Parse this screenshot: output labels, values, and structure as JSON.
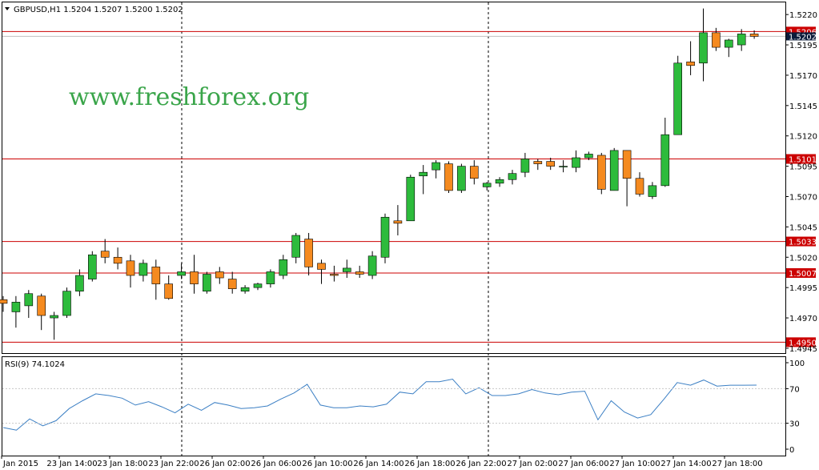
{
  "header": {
    "symbol_line": "GBPUSD,H1  1.5204  1.5207  1.5200  1.5202",
    "rsi_label": "RSI(9) 74.1024"
  },
  "watermark": "www.freshforex.org",
  "colors": {
    "bull": "#2dbb3c",
    "bear": "#f58a1f",
    "candle_outline": "#000000",
    "level_line": "#cc0000",
    "level_tag_bg": "#cc0000",
    "price_tag_bg": "#0b1b3a",
    "rsi_line": "#3b7fc4",
    "watermark": "#3aa54a",
    "grid": "#000000"
  },
  "chart_data": [
    {
      "type": "candlestick",
      "title": "GBPUSD,H1",
      "ylim": [
        1.4941,
        1.523
      ],
      "y_ticks": [
        "1.5220",
        "1.5195",
        "1.5170",
        "1.5145",
        "1.5120",
        "1.5095",
        "1.5070",
        "1.5045",
        "1.5020",
        "1.4995",
        "1.4970",
        "1.4945"
      ],
      "x_ticks": [
        "23 Jan 2015",
        "23 Jan 14:00",
        "23 Jan 18:00",
        "23 Jan 22:00",
        "26 Jan 02:00",
        "26 Jan 06:00",
        "26 Jan 10:00",
        "26 Jan 14:00",
        "26 Jan 18:00",
        "26 Jan 22:00",
        "27 Jan 02:00",
        "27 Jan 06:00",
        "27 Jan 10:00",
        "27 Jan 14:00",
        "27 Jan 18:00"
      ],
      "separator_after_ticks": [
        "23 Jan 22:00",
        "26 Jan 22:00"
      ],
      "levels": [
        {
          "value": 1.5206,
          "label": "1.5206"
        },
        {
          "value": 1.5101,
          "label": "1.5101"
        },
        {
          "value": 1.5033,
          "label": "1.5033"
        },
        {
          "value": 1.5007,
          "label": "1.5007"
        },
        {
          "value": 1.495,
          "label": "1.4950"
        }
      ],
      "current_price": {
        "value": 1.5202,
        "label": "1.5202"
      },
      "ohlc": [
        [
          1.4985,
          1.4988,
          1.4975,
          1.4982
        ],
        [
          1.4975,
          1.4988,
          1.4962,
          1.4983
        ],
        [
          1.498,
          1.4993,
          1.497,
          1.499
        ],
        [
          1.4988,
          1.499,
          1.496,
          1.4972
        ],
        [
          1.497,
          1.4975,
          1.4952,
          1.4972
        ],
        [
          1.4972,
          1.4995,
          1.497,
          1.4992
        ],
        [
          1.4992,
          1.501,
          1.4988,
          1.5005
        ],
        [
          1.5002,
          1.5025,
          1.5,
          1.5022
        ],
        [
          1.5025,
          1.5035,
          1.5015,
          1.502
        ],
        [
          1.502,
          1.5028,
          1.501,
          1.5015
        ],
        [
          1.5017,
          1.5022,
          1.4995,
          1.5005
        ],
        [
          1.5005,
          1.5018,
          1.5,
          1.5015
        ],
        [
          1.5012,
          1.5018,
          1.4985,
          1.4998
        ],
        [
          1.4998,
          1.5005,
          1.4985,
          1.4986
        ],
        [
          1.5005,
          1.5015,
          1.5002,
          1.5008
        ],
        [
          1.5008,
          1.5022,
          1.499,
          1.4998
        ],
        [
          1.4992,
          1.5008,
          1.499,
          1.5006
        ],
        [
          1.5008,
          1.5012,
          1.4998,
          1.5003
        ],
        [
          1.5002,
          1.5008,
          1.499,
          1.4994
        ],
        [
          1.4992,
          1.4997,
          1.499,
          1.4995
        ],
        [
          1.4995,
          1.4999,
          1.4993,
          1.4998
        ],
        [
          1.4998,
          1.501,
          1.4995,
          1.5008
        ],
        [
          1.5005,
          1.5022,
          1.5002,
          1.5018
        ],
        [
          1.502,
          1.504,
          1.5015,
          1.5038
        ],
        [
          1.5035,
          1.504,
          1.5005,
          1.5012
        ],
        [
          1.5015,
          1.5018,
          1.4998,
          1.501
        ],
        [
          1.5006,
          1.5013,
          1.5,
          1.5005
        ],
        [
          1.5008,
          1.5018,
          1.5003,
          1.5011
        ],
        [
          1.5008,
          1.5013,
          1.5003,
          1.5006
        ],
        [
          1.5005,
          1.5025,
          1.5002,
          1.5021
        ],
        [
          1.502,
          1.5056,
          1.5015,
          1.5053
        ],
        [
          1.505,
          1.5063,
          1.5038,
          1.5048
        ],
        [
          1.505,
          1.5088,
          1.505,
          1.5086
        ],
        [
          1.5087,
          1.5096,
          1.5072,
          1.509
        ],
        [
          1.5092,
          1.51,
          1.5085,
          1.5098
        ],
        [
          1.5097,
          1.5099,
          1.5073,
          1.5075
        ],
        [
          1.5075,
          1.5097,
          1.5073,
          1.5095
        ],
        [
          1.5095,
          1.51,
          1.508,
          1.5085
        ],
        [
          1.5078,
          1.5082,
          1.5075,
          1.5081
        ],
        [
          1.5081,
          1.5086,
          1.5078,
          1.5084
        ],
        [
          1.5084,
          1.5092,
          1.508,
          1.5089
        ],
        [
          1.509,
          1.5106,
          1.5086,
          1.5101
        ],
        [
          1.5099,
          1.5101,
          1.5092,
          1.5097
        ],
        [
          1.5099,
          1.5102,
          1.5092,
          1.5095
        ],
        [
          1.5095,
          1.51,
          1.509,
          1.5095
        ],
        [
          1.5094,
          1.5108,
          1.509,
          1.5102
        ],
        [
          1.5102,
          1.5107,
          1.51,
          1.5105
        ],
        [
          1.5104,
          1.5106,
          1.5072,
          1.5076
        ],
        [
          1.5075,
          1.511,
          1.5075,
          1.5108
        ],
        [
          1.5108,
          1.5108,
          1.5062,
          1.5085
        ],
        [
          1.5085,
          1.509,
          1.507,
          1.5072
        ],
        [
          1.507,
          1.5082,
          1.5068,
          1.5079
        ],
        [
          1.5079,
          1.5135,
          1.5078,
          1.5121
        ],
        [
          1.5121,
          1.5186,
          1.5121,
          1.518
        ],
        [
          1.5181,
          1.5198,
          1.517,
          1.5178
        ],
        [
          1.518,
          1.5225,
          1.5165,
          1.5205
        ],
        [
          1.5205,
          1.5209,
          1.519,
          1.5193
        ],
        [
          1.5193,
          1.52,
          1.5185,
          1.5199
        ],
        [
          1.5195,
          1.5208,
          1.519,
          1.5204
        ],
        [
          1.5204,
          1.5207,
          1.52,
          1.5202
        ]
      ]
    },
    {
      "type": "line",
      "title": "RSI(9) 74.1024",
      "ylim": [
        0,
        100
      ],
      "y_ticks": [
        "100",
        "70",
        "30",
        "0"
      ],
      "levels": [
        70,
        30
      ],
      "values": [
        25,
        22,
        35,
        27,
        33,
        47,
        56,
        64,
        62,
        59,
        51,
        55,
        49,
        42,
        52,
        45,
        54,
        51,
        47,
        48,
        50,
        58,
        65,
        75,
        51,
        48,
        48,
        50,
        49,
        52,
        66,
        64,
        78,
        78,
        81,
        64,
        71,
        62,
        62,
        64,
        69,
        65,
        63,
        66,
        67,
        34,
        56,
        43,
        36,
        40,
        58,
        77,
        74,
        80,
        73,
        74,
        74,
        74.1
      ]
    }
  ]
}
